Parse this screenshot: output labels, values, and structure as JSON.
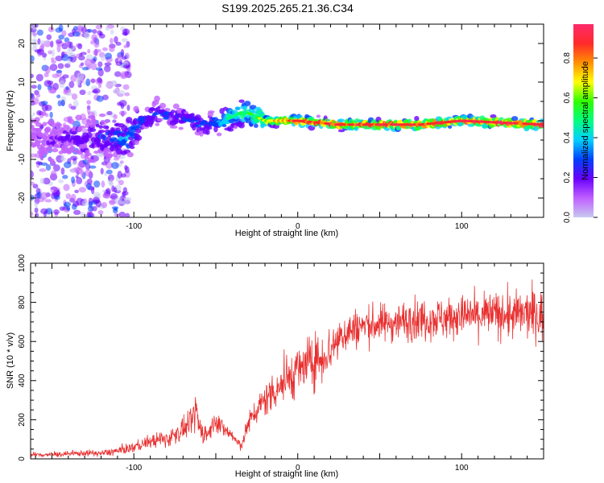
{
  "title": "S199.2025.265.21.36.C34",
  "chart_data": [
    {
      "type": "heatmap",
      "xlabel": "Height of straight line (km)",
      "ylabel": "Frequency (Hz)",
      "xlim": [
        -163,
        150
      ],
      "ylim": [
        -25,
        25
      ],
      "xticks": [
        -100,
        0,
        100
      ],
      "yticks": [
        -20,
        -10,
        0,
        10,
        20
      ],
      "colorbar": {
        "label": "Normalized spectral amplitude",
        "ticks": [
          "0.0",
          "0.2",
          "0.4",
          "0.6",
          "0.8"
        ],
        "range": [
          0,
          0.97
        ],
        "colors": [
          "#c8c8f0",
          "#c060ff",
          "#6a00ff",
          "#0040ff",
          "#00d0ff",
          "#00ff80",
          "#30ff00",
          "#ffff00",
          "#ff9000",
          "#ff2a2a",
          "#ff2a6a"
        ]
      },
      "ridge": {
        "description": "frequency centroid vs height",
        "x": [
          -163,
          -140,
          -120,
          -105,
          -95,
          -85,
          -75,
          -65,
          -55,
          -45,
          -35,
          -30,
          -25,
          -20,
          -10,
          0,
          25,
          50,
          75,
          100,
          125,
          150
        ],
        "y": [
          -4,
          -5,
          -4,
          -5,
          0,
          2,
          1,
          0,
          -1,
          0,
          2,
          2,
          1,
          0,
          0,
          0,
          -1,
          -1,
          -1,
          0,
          -0.5,
          -1
        ],
        "peak_amplitude": [
          0.15,
          0.2,
          0.25,
          0.35,
          0.3,
          0.3,
          0.25,
          0.3,
          0.3,
          0.45,
          0.55,
          0.6,
          0.6,
          0.7,
          0.8,
          0.9,
          0.95,
          0.95,
          0.95,
          0.97,
          0.97,
          0.95
        ]
      }
    },
    {
      "type": "line",
      "xlabel": "Height of straight line (km)",
      "ylabel": "SNR (10 * v/v)",
      "xlim": [
        -163,
        150
      ],
      "ylim": [
        0,
        1000
      ],
      "xticks": [
        -100,
        0,
        100
      ],
      "yticks": [
        0,
        200,
        400,
        600,
        800,
        1000
      ],
      "series": [
        {
          "color": "#e83030",
          "x": [
            -163,
            -150,
            -140,
            -130,
            -120,
            -110,
            -100,
            -90,
            -80,
            -70,
            -65,
            -62,
            -60,
            -55,
            -50,
            -45,
            -40,
            -35,
            -30,
            -25,
            -20,
            -15,
            -10,
            -5,
            0,
            5,
            10,
            15,
            20,
            25,
            30,
            40,
            50,
            60,
            70,
            80,
            90,
            100,
            110,
            120,
            130,
            140,
            150
          ],
          "y": [
            20,
            22,
            25,
            30,
            28,
            40,
            60,
            90,
            100,
            150,
            180,
            250,
            160,
            120,
            200,
            150,
            120,
            60,
            180,
            250,
            300,
            350,
            380,
            420,
            450,
            480,
            500,
            520,
            560,
            620,
            650,
            680,
            690,
            700,
            710,
            720,
            720,
            730,
            730,
            740,
            730,
            740,
            730
          ],
          "spread": [
            15,
            15,
            15,
            18,
            18,
            25,
            30,
            40,
            50,
            60,
            70,
            120,
            70,
            60,
            60,
            50,
            40,
            30,
            60,
            80,
            100,
            120,
            130,
            140,
            150,
            150,
            150,
            150,
            140,
            130,
            120,
            110,
            110,
            110,
            120,
            120,
            120,
            120,
            130,
            130,
            140,
            140,
            150
          ]
        }
      ]
    }
  ]
}
